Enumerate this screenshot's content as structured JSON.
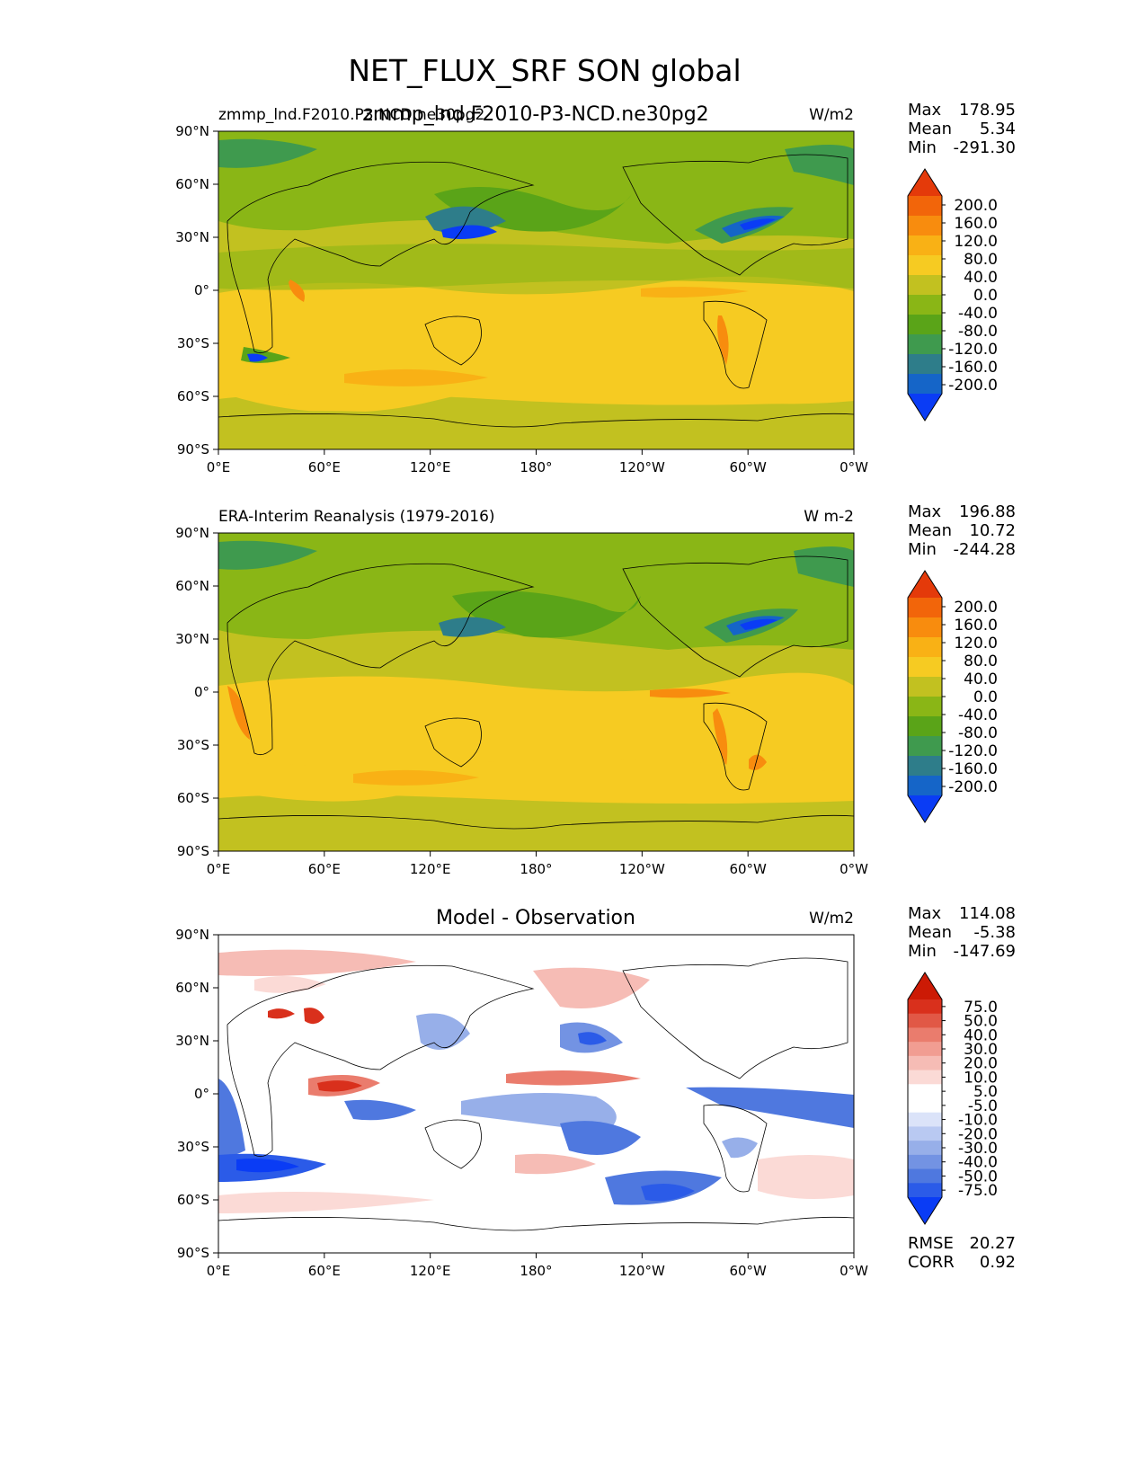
{
  "figure": {
    "title": "NET_FLUX_SRF SON global"
  },
  "colors": {
    "main_levels": [
      "#0a3cf5",
      "#1565c8",
      "#2e7d8a",
      "#3f9a4e",
      "#5aa418",
      "#8ab616",
      "#c2c120",
      "#f6cb22",
      "#f9b115",
      "#f88c0e",
      "#f2650a",
      "#e43a0a"
    ],
    "diff_levels": [
      "#0a3cf5",
      "#2b5be8",
      "#4f78df",
      "#7393e3",
      "#97afe9",
      "#b9c9f2",
      "#dbe3f9",
      "#ffffff",
      "#ffffff",
      "#fbdad6",
      "#f6bcb5",
      "#f19d92",
      "#ea7c6d",
      "#e15846",
      "#d9301c",
      "#cc1a05"
    ]
  },
  "panels": [
    {
      "id": "test",
      "title_left": "zmmp_lnd.F2010.P3.NCD.ne30pg2",
      "title_center": "zmmp_lnd.F2010-P3-NCD.ne30pg2",
      "units": "W/m2",
      "stats": [
        {
          "label": "Max",
          "value": "178.95"
        },
        {
          "label": "Mean",
          "value": "5.34"
        },
        {
          "label": "Min",
          "value": "-291.30"
        }
      ],
      "colorbar_ticks": [
        "200.0",
        "160.0",
        "120.0",
        "80.0",
        "40.0",
        "0.0",
        "-40.0",
        "-80.0",
        "-120.0",
        "-160.0",
        "-200.0"
      ]
    },
    {
      "id": "ref",
      "title_left": "ERA-Interim Reanalysis (1979-2016)",
      "title_center": "",
      "units": "W m-2",
      "stats": [
        {
          "label": "Max",
          "value": "196.88"
        },
        {
          "label": "Mean",
          "value": "10.72"
        },
        {
          "label": "Min",
          "value": "-244.28"
        }
      ],
      "colorbar_ticks": [
        "200.0",
        "160.0",
        "120.0",
        "80.0",
        "40.0",
        "0.0",
        "-40.0",
        "-80.0",
        "-120.0",
        "-160.0",
        "-200.0"
      ]
    },
    {
      "id": "diff",
      "title_left": "",
      "title_center": "Model - Observation",
      "units": "W/m2",
      "stats": [
        {
          "label": "Max",
          "value": "114.08"
        },
        {
          "label": "Mean",
          "value": "-5.38"
        },
        {
          "label": "Min",
          "value": "-147.69"
        }
      ],
      "colorbar_ticks": [
        "75.0",
        "50.0",
        "40.0",
        "30.0",
        "20.0",
        "10.0",
        "5.0",
        "-5.0",
        "-10.0",
        "-20.0",
        "-30.0",
        "-40.0",
        "-50.0",
        "-75.0"
      ],
      "metrics": [
        {
          "label": "RMSE",
          "value": "20.27"
        },
        {
          "label": "CORR",
          "value": "0.92"
        }
      ]
    }
  ],
  "chart_data": {
    "type": "heatmap",
    "title": "NET_FLUX_SRF SON global",
    "variable": "NET_FLUX_SRF",
    "season": "SON",
    "region": "global",
    "lat_ticks": [
      "90°N",
      "60°N",
      "30°N",
      "0°",
      "30°S",
      "60°S",
      "90°S"
    ],
    "lon_ticks": [
      "0°E",
      "60°E",
      "120°E",
      "180°",
      "120°W",
      "60°W",
      "0°W"
    ],
    "lat_range": [
      -90,
      90
    ],
    "lon_range": [
      0,
      360
    ],
    "panels": [
      {
        "name": "zmmp_lnd.F2010-P3-NCD.ne30pg2",
        "units": "W/m2",
        "max": 178.95,
        "mean": 5.34,
        "min": -291.3
      },
      {
        "name": "ERA-Interim Reanalysis (1979-2016)",
        "units": "W m-2",
        "max": 196.88,
        "mean": 10.72,
        "min": -244.28
      },
      {
        "name": "Model - Observation",
        "units": "W/m2",
        "max": 114.08,
        "mean": -5.38,
        "min": -147.69,
        "rmse": 20.27,
        "corr": 0.92
      }
    ]
  }
}
